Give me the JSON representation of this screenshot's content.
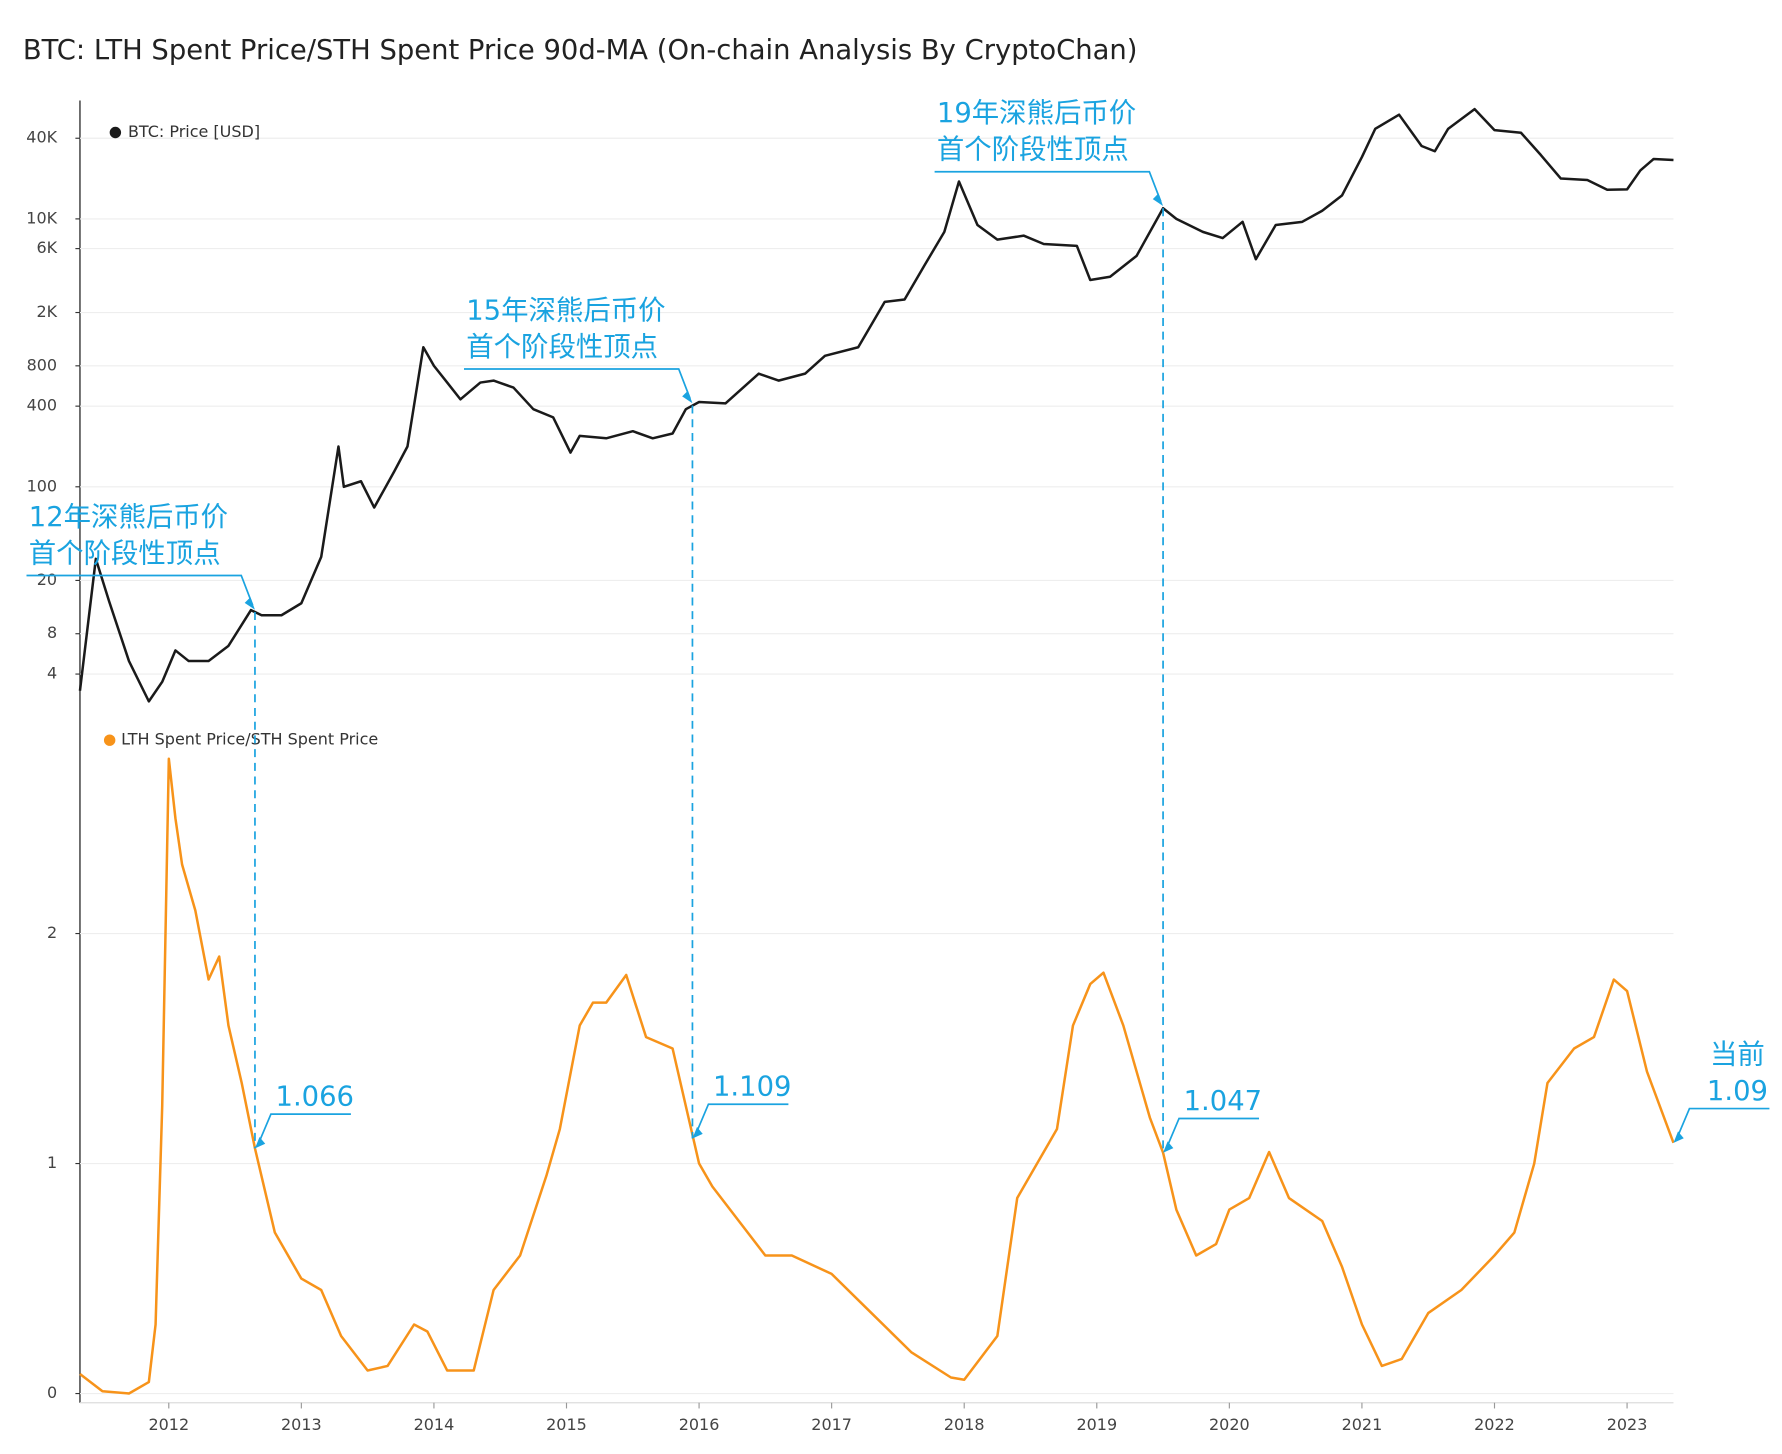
{
  "chart_data": [
    {
      "type": "line",
      "title": "BTC: LTH Spent Price/STH Spent Price 90d-MA (On-chain Analysis By CryptoChan)",
      "log_scale": true,
      "grid": true,
      "xlim": [
        2011.33,
        2023.35
      ],
      "ylim": [
        1.9,
        76500
      ],
      "yticks": [
        4,
        8,
        20,
        100,
        400,
        800,
        {
          "value": 2000,
          "label": "2K"
        },
        {
          "value": 6000,
          "label": "6K"
        },
        {
          "value": 10000,
          "label": "10K"
        },
        {
          "value": 40000,
          "label": "40K"
        }
      ],
      "x": [
        2011.33,
        2011.45,
        2011.55,
        2011.7,
        2011.85,
        2011.95,
        2012.05,
        2012.15,
        2012.3,
        2012.45,
        2012.62,
        2012.7,
        2012.85,
        2013.0,
        2013.15,
        2013.28,
        2013.32,
        2013.45,
        2013.55,
        2013.7,
        2013.8,
        2013.92,
        2014.0,
        2014.1,
        2014.2,
        2014.35,
        2014.45,
        2014.6,
        2014.75,
        2014.9,
        2015.03,
        2015.1,
        2015.3,
        2015.5,
        2015.65,
        2015.8,
        2015.9,
        2016.0,
        2016.2,
        2016.45,
        2016.6,
        2016.8,
        2016.95,
        2017.2,
        2017.4,
        2017.55,
        2017.7,
        2017.85,
        2017.96,
        2018.1,
        2018.25,
        2018.45,
        2018.6,
        2018.85,
        2018.95,
        2019.1,
        2019.3,
        2019.5,
        2019.6,
        2019.8,
        2019.95,
        2020.1,
        2020.2,
        2020.35,
        2020.55,
        2020.7,
        2020.85,
        2021.0,
        2021.1,
        2021.28,
        2021.45,
        2021.55,
        2021.65,
        2021.85,
        2022.0,
        2022.2,
        2022.35,
        2022.5,
        2022.7,
        2022.85,
        2023.0,
        2023.1,
        2023.2,
        2023.35
      ],
      "series": [
        {
          "name": "BTC: Price [USD]",
          "color": "#1a1a1a",
          "values": [
            3,
            29,
            14,
            5,
            2.5,
            3.5,
            6,
            5,
            5,
            6.5,
            12,
            11,
            11,
            13.5,
            30,
            200,
            100,
            110,
            70,
            130,
            200,
            1100,
            800,
            600,
            450,
            600,
            620,
            550,
            380,
            330,
            180,
            240,
            230,
            260,
            230,
            250,
            380,
            430,
            420,
            700,
            620,
            700,
            950,
            1100,
            2400,
            2500,
            4500,
            8000,
            19000,
            9000,
            7000,
            7500,
            6500,
            6300,
            3500,
            3700,
            5300,
            12000,
            10000,
            8000,
            7200,
            9500,
            5000,
            9000,
            9500,
            11500,
            15000,
            29000,
            47000,
            60000,
            35000,
            32000,
            47000,
            66000,
            46000,
            44000,
            30000,
            20000,
            19500,
            16500,
            16600,
            23000,
            28000,
            27500
          ]
        }
      ],
      "annotations": [
        {
          "x": 2012.65,
          "text": [
            "12年深熊后币价",
            "首个阶段性顶点"
          ]
        },
        {
          "x": 2015.95,
          "text": [
            "15年深熊后币价",
            "首个阶段性顶点"
          ]
        },
        {
          "x": 2019.5,
          "text": [
            "19年深熊后币价",
            "首个阶段性顶点"
          ]
        }
      ]
    },
    {
      "type": "line",
      "grid": true,
      "xlim": [
        2011.33,
        2023.35
      ],
      "xticks": [
        2012,
        2013,
        2014,
        2015,
        2016,
        2017,
        2018,
        2019,
        2020,
        2021,
        2022,
        2023
      ],
      "ylim": [
        -0.04,
        2.93
      ],
      "yticks": [
        0,
        1,
        2
      ],
      "x": [
        2011.33,
        2011.5,
        2011.7,
        2011.85,
        2011.9,
        2011.95,
        2012.0,
        2012.05,
        2012.1,
        2012.2,
        2012.3,
        2012.38,
        2012.45,
        2012.55,
        2012.65,
        2012.8,
        2013.0,
        2013.15,
        2013.3,
        2013.5,
        2013.65,
        2013.85,
        2013.95,
        2014.1,
        2014.3,
        2014.45,
        2014.65,
        2014.85,
        2014.95,
        2015.1,
        2015.2,
        2015.3,
        2015.45,
        2015.6,
        2015.8,
        2015.92,
        2016.0,
        2016.1,
        2016.3,
        2016.5,
        2016.7,
        2017.0,
        2017.3,
        2017.6,
        2017.9,
        2018.0,
        2018.25,
        2018.4,
        2018.55,
        2018.7,
        2018.82,
        2018.95,
        2019.05,
        2019.2,
        2019.4,
        2019.5,
        2019.6,
        2019.75,
        2019.9,
        2020.0,
        2020.15,
        2020.3,
        2020.45,
        2020.7,
        2020.85,
        2021.0,
        2021.15,
        2021.3,
        2021.5,
        2021.75,
        2022.0,
        2022.15,
        2022.3,
        2022.4,
        2022.6,
        2022.75,
        2022.9,
        2023.0,
        2023.15,
        2023.35
      ],
      "series": [
        {
          "name": "LTH Spent Price/STH Spent Price",
          "color": "#f7931a",
          "values": [
            0.085,
            0.01,
            0.0,
            0.05,
            0.3,
            1.25,
            2.76,
            2.5,
            2.3,
            2.1,
            1.8,
            1.9,
            1.6,
            1.35,
            1.066,
            0.7,
            0.5,
            0.45,
            0.25,
            0.1,
            0.12,
            0.3,
            0.27,
            0.1,
            0.1,
            0.45,
            0.6,
            0.95,
            1.15,
            1.6,
            1.7,
            1.7,
            1.82,
            1.55,
            1.5,
            1.2,
            1.0,
            0.9,
            0.75,
            0.6,
            0.6,
            0.52,
            0.35,
            0.18,
            0.07,
            0.06,
            0.25,
            0.85,
            1.0,
            1.15,
            1.6,
            1.78,
            1.83,
            1.6,
            1.2,
            1.047,
            0.8,
            0.6,
            0.65,
            0.8,
            0.85,
            1.05,
            0.85,
            0.75,
            0.55,
            0.3,
            0.12,
            0.15,
            0.35,
            0.45,
            0.6,
            0.7,
            1.0,
            1.35,
            1.5,
            1.55,
            1.8,
            1.75,
            1.4,
            1.09
          ]
        }
      ],
      "annotations": [
        {
          "x": 2012.65,
          "value": 1.066
        },
        {
          "x": 2015.95,
          "value": 1.109
        },
        {
          "x": 2019.5,
          "value": 1.047
        },
        {
          "x": 2023.35,
          "text": "当前",
          "value": 1.09
        }
      ]
    }
  ]
}
